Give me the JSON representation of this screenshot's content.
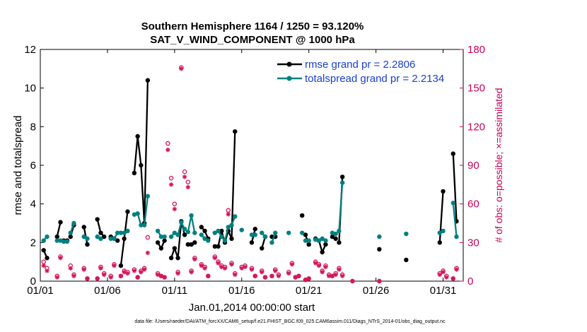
{
  "chart_data": {
    "type": "line",
    "title": "Southern Hemisphere 1164 / 1250 = 93.120%",
    "subtitle": "SAT_V_WIND_COMPONENT @ 1000 hPa",
    "xlabel": "Jan.01,2014 00:00:00 start",
    "ylabel": "rmse and totalspread",
    "y2label": "# of obs: o=possible; ×=assimilated",
    "footnote": "data file: /Users/raeder/DAI/ATM_forcXX/CAM6_setup/f.e21.FHIST_BGC.f09_025.CAM6assim.011/Diags_NTrS_2014-01/obs_diag_output.nc",
    "xlim": [
      1,
      32.5
    ],
    "ylim": [
      0,
      12
    ],
    "y2lim": [
      0,
      180
    ],
    "xticks": [
      1,
      6,
      11,
      16,
      21,
      26,
      31
    ],
    "xtick_labels": [
      "01/01",
      "01/06",
      "01/11",
      "01/16",
      "01/21",
      "01/26",
      "01/31"
    ],
    "yticks": [
      0,
      2,
      4,
      6,
      8,
      10,
      12
    ],
    "ytick_labels": [
      "0",
      "2",
      "4",
      "6",
      "8",
      "10",
      "12"
    ],
    "y2ticks": [
      0,
      30,
      60,
      90,
      120,
      150,
      180
    ],
    "y2tick_labels": [
      "0",
      "30",
      "60",
      "90",
      "120",
      "150",
      "180"
    ],
    "legend_position": "top-right",
    "series": [
      {
        "name": "rmse grand pr = 2.2806",
        "color": "#000000",
        "segments": [
          [
            [
              1.25,
              1.6
            ],
            [
              1.5,
              1.2
            ]
          ],
          [
            [
              2.25,
              2.3
            ],
            [
              2.5,
              3.05
            ]
          ],
          [
            [
              2.75,
              2.1
            ],
            [
              3.0,
              2.1
            ]
          ],
          [
            [
              3.25,
              2.3
            ],
            [
              3.5,
              2.9
            ]
          ],
          [
            [
              4.25,
              2.8
            ],
            [
              4.5,
              1.9
            ]
          ],
          [
            [
              5.25,
              3.2
            ],
            [
              5.5,
              2.5
            ],
            [
              5.75,
              2.3
            ]
          ],
          [
            [
              6.25,
              2.3
            ],
            [
              6.5,
              2.2
            ],
            [
              6.75,
              2.1
            ]
          ],
          [
            [
              7.0,
              0.8
            ],
            [
              7.25,
              2.2
            ],
            [
              7.5,
              3.6
            ]
          ],
          [
            [
              8.0,
              5.6
            ],
            [
              8.25,
              7.5
            ],
            [
              8.5,
              6.0
            ],
            [
              8.75,
              3.0
            ],
            [
              9.0,
              10.4
            ]
          ],
          [
            [
              9.75,
              2.0
            ],
            [
              10.0,
              1.7
            ],
            [
              10.25,
              2.1
            ]
          ],
          [
            [
              10.75,
              1.2
            ],
            [
              11.0,
              1.7
            ],
            [
              11.25,
              1.2
            ],
            [
              11.5,
              3.1
            ],
            [
              11.75,
              2.4
            ]
          ],
          [
            [
              12.0,
              1.9
            ],
            [
              12.25,
              1.9
            ],
            [
              12.5,
              2.0
            ]
          ],
          [
            [
              13.0,
              2.8
            ],
            [
              13.25,
              2.6
            ],
            [
              13.5,
              2.2
            ]
          ],
          [
            [
              14.0,
              1.8
            ],
            [
              14.25,
              1.8
            ],
            [
              14.5,
              2.6
            ],
            [
              14.75,
              2.0
            ],
            [
              15.0,
              2.6
            ],
            [
              15.25,
              2.2
            ],
            [
              15.5,
              7.75
            ]
          ],
          [
            [
              16.75,
              2.0
            ],
            [
              17.0,
              2.7
            ]
          ],
          [
            [
              17.5,
              1.7
            ],
            [
              17.75,
              2.3
            ]
          ],
          [
            [
              18.25,
              2.3
            ],
            [
              18.5,
              2.3
            ]
          ],
          [
            [
              20.75,
              2.4
            ],
            [
              21.0,
              1.9
            ]
          ],
          [
            [
              21.5,
              2.2
            ],
            [
              21.75,
              2.1
            ],
            [
              22.0,
              1.5
            ],
            [
              22.25,
              1.9
            ]
          ],
          [
            [
              22.75,
              2.3
            ],
            [
              23.0,
              2.2
            ]
          ],
          [
            [
              23.25,
              2.0
            ],
            [
              23.5,
              5.4
            ]
          ],
          [
            [
              30.75,
              2.0
            ],
            [
              31.0,
              4.65
            ]
          ],
          [
            [
              31.75,
              6.6
            ],
            [
              32.0,
              3.1
            ]
          ]
        ],
        "points": [
          [
            20.5,
            3.4
          ],
          [
            26.25,
            1.65
          ],
          [
            28.25,
            1.1
          ]
        ]
      },
      {
        "name": "totalspread grand pr = 2.2134",
        "color": "#008080",
        "segments": [
          [
            [
              1.25,
              2.1
            ],
            [
              1.5,
              2.3
            ]
          ],
          [
            [
              2.25,
              2.1
            ],
            [
              2.5,
              2.1
            ]
          ],
          [
            [
              2.75,
              2.05
            ],
            [
              3.0,
              2.05
            ]
          ],
          [
            [
              3.25,
              2.5
            ],
            [
              3.5,
              3.0
            ]
          ],
          [
            [
              4.25,
              2.3
            ],
            [
              4.5,
              2.2
            ]
          ],
          [
            [
              5.25,
              2.3
            ],
            [
              5.5,
              2.2
            ]
          ],
          [
            [
              6.25,
              2.2
            ],
            [
              6.5,
              2.2
            ],
            [
              6.75,
              2.5
            ]
          ],
          [
            [
              7.0,
              2.5
            ],
            [
              7.25,
              2.5
            ],
            [
              7.5,
              2.6
            ]
          ],
          [
            [
              8.0,
              3.45
            ],
            [
              8.25,
              3.5
            ],
            [
              8.5,
              2.9
            ],
            [
              8.75,
              2.9
            ],
            [
              9.0,
              4.4
            ]
          ],
          [
            [
              9.75,
              2.6
            ],
            [
              10.0,
              2.3
            ],
            [
              10.25,
              2.3
            ]
          ],
          [
            [
              10.75,
              2.3
            ],
            [
              11.0,
              2.5
            ],
            [
              11.25,
              2.4
            ],
            [
              11.5,
              3.05
            ],
            [
              11.75,
              2.7
            ]
          ],
          [
            [
              12.0,
              2.55
            ],
            [
              12.25,
              3.4
            ],
            [
              12.5,
              2.5
            ]
          ],
          [
            [
              13.0,
              2.4
            ],
            [
              13.25,
              2.2
            ],
            [
              13.5,
              2.1
            ]
          ],
          [
            [
              14.0,
              2.5
            ],
            [
              14.25,
              2.6
            ],
            [
              14.5,
              2.3
            ],
            [
              14.75,
              2.1
            ],
            [
              15.0,
              2.8
            ],
            [
              15.25,
              2.9
            ],
            [
              15.5,
              3.35
            ]
          ],
          [
            [
              16.75,
              2.4
            ],
            [
              17.0,
              2.4
            ]
          ],
          [
            [
              17.5,
              2.5
            ],
            [
              17.75,
              2.3
            ]
          ],
          [
            [
              18.25,
              2.0
            ],
            [
              18.5,
              2.5
            ]
          ],
          [
            [
              20.75,
              2.1
            ],
            [
              21.0,
              2.1
            ]
          ],
          [
            [
              21.5,
              2.15
            ],
            [
              21.75,
              2.1
            ],
            [
              22.0,
              2.2
            ],
            [
              22.25,
              2.1
            ]
          ],
          [
            [
              22.75,
              2.5
            ],
            [
              23.0,
              2.45
            ]
          ],
          [
            [
              23.25,
              2.6
            ],
            [
              23.5,
              5.1
            ]
          ],
          [
            [
              30.75,
              2.5
            ],
            [
              31.0,
              2.6
            ]
          ],
          [
            [
              31.75,
              4.05
            ],
            [
              32.0,
              2.3
            ]
          ]
        ],
        "points": [
          [
            16.0,
            2.65
          ],
          [
            19.5,
            2.5
          ],
          [
            20.5,
            2.5
          ],
          [
            26.25,
            2.3
          ],
          [
            28.25,
            2.45
          ]
        ]
      }
    ],
    "obs_possible": [
      [
        1.25,
        15
      ],
      [
        1.5,
        10
      ],
      [
        2.25,
        4
      ],
      [
        2.5,
        19
      ],
      [
        3.25,
        12
      ],
      [
        3.5,
        5
      ],
      [
        4.25,
        10
      ],
      [
        4.5,
        2
      ],
      [
        5.25,
        2
      ],
      [
        5.5,
        11
      ],
      [
        5.75,
        6
      ],
      [
        6.25,
        4
      ],
      [
        6.5,
        13
      ],
      [
        7.0,
        4
      ],
      [
        7.25,
        8
      ],
      [
        7.5,
        7
      ],
      [
        8.0,
        9
      ],
      [
        8.25,
        3
      ],
      [
        8.5,
        8
      ],
      [
        8.75,
        10
      ],
      [
        9.0,
        34
      ],
      [
        9.75,
        6
      ],
      [
        10.0,
        4
      ],
      [
        10.25,
        3
      ],
      [
        10.5,
        107
      ],
      [
        10.75,
        80
      ],
      [
        11.0,
        60
      ],
      [
        11.25,
        7
      ],
      [
        11.5,
        166
      ],
      [
        11.75,
        85
      ],
      [
        12.0,
        77
      ],
      [
        12.25,
        8
      ],
      [
        12.5,
        18
      ],
      [
        13.0,
        13
      ],
      [
        13.25,
        11
      ],
      [
        13.5,
        4
      ],
      [
        14.0,
        19
      ],
      [
        14.25,
        15
      ],
      [
        14.5,
        12
      ],
      [
        14.75,
        11
      ],
      [
        15.0,
        55
      ],
      [
        15.25,
        14
      ],
      [
        15.5,
        6
      ],
      [
        16.0,
        11
      ],
      [
        16.25,
        12
      ],
      [
        16.75,
        10
      ],
      [
        17.0,
        4
      ],
      [
        17.5,
        8
      ],
      [
        17.75,
        3
      ],
      [
        18.25,
        4
      ],
      [
        18.5,
        9
      ],
      [
        18.75,
        5
      ],
      [
        19.5,
        7
      ],
      [
        19.75,
        14
      ],
      [
        20.0,
        3
      ],
      [
        20.25,
        4
      ],
      [
        20.75,
        1
      ],
      [
        21.0,
        2
      ],
      [
        21.5,
        15
      ],
      [
        21.75,
        13
      ],
      [
        22.0,
        8
      ],
      [
        22.25,
        12
      ],
      [
        22.5,
        5
      ],
      [
        22.75,
        4
      ],
      [
        23.0,
        6
      ],
      [
        23.25,
        10
      ],
      [
        23.5,
        5
      ],
      [
        24.25,
        0
      ],
      [
        26.25,
        0
      ],
      [
        30.75,
        6
      ],
      [
        31.0,
        8
      ],
      [
        31.25,
        4
      ],
      [
        31.75,
        2
      ],
      [
        32.0,
        10
      ]
    ],
    "obs_assimilated": [
      [
        1.25,
        12
      ],
      [
        1.5,
        8
      ],
      [
        2.25,
        3
      ],
      [
        2.5,
        18
      ],
      [
        3.25,
        10
      ],
      [
        3.5,
        4
      ],
      [
        4.25,
        9
      ],
      [
        4.5,
        2
      ],
      [
        5.25,
        2
      ],
      [
        5.5,
        10
      ],
      [
        5.75,
        5
      ],
      [
        6.25,
        3
      ],
      [
        6.5,
        12
      ],
      [
        7.0,
        4
      ],
      [
        7.25,
        7
      ],
      [
        7.5,
        6
      ],
      [
        8.0,
        8
      ],
      [
        8.25,
        3
      ],
      [
        8.5,
        7
      ],
      [
        8.75,
        9
      ],
      [
        9.0,
        22
      ],
      [
        9.75,
        5
      ],
      [
        10.0,
        4
      ],
      [
        10.25,
        3
      ],
      [
        10.5,
        102
      ],
      [
        10.75,
        75
      ],
      [
        11.0,
        56
      ],
      [
        11.25,
        6
      ],
      [
        11.5,
        165
      ],
      [
        11.75,
        81
      ],
      [
        12.0,
        73
      ],
      [
        12.25,
        7
      ],
      [
        12.5,
        17
      ],
      [
        13.0,
        12
      ],
      [
        13.25,
        10
      ],
      [
        13.5,
        4
      ],
      [
        14.0,
        18
      ],
      [
        14.25,
        14
      ],
      [
        14.5,
        11
      ],
      [
        14.75,
        10
      ],
      [
        15.0,
        52
      ],
      [
        15.25,
        13
      ],
      [
        15.5,
        5
      ],
      [
        16.0,
        10
      ],
      [
        16.25,
        11
      ],
      [
        16.75,
        9
      ],
      [
        17.0,
        4
      ],
      [
        17.5,
        7
      ],
      [
        17.75,
        3
      ],
      [
        18.25,
        4
      ],
      [
        18.5,
        8
      ],
      [
        18.75,
        4
      ],
      [
        19.5,
        6
      ],
      [
        19.75,
        13
      ],
      [
        20.0,
        3
      ],
      [
        20.25,
        4
      ],
      [
        20.75,
        1
      ],
      [
        21.0,
        2
      ],
      [
        21.5,
        14
      ],
      [
        21.75,
        12
      ],
      [
        22.0,
        7
      ],
      [
        22.25,
        11
      ],
      [
        22.5,
        4
      ],
      [
        22.75,
        4
      ],
      [
        23.0,
        5
      ],
      [
        23.25,
        9
      ],
      [
        23.5,
        4
      ],
      [
        24.25,
        0
      ],
      [
        26.25,
        0
      ],
      [
        30.75,
        5
      ],
      [
        31.0,
        7
      ],
      [
        31.25,
        3
      ],
      [
        31.75,
        2
      ],
      [
        32.0,
        9
      ]
    ]
  }
}
